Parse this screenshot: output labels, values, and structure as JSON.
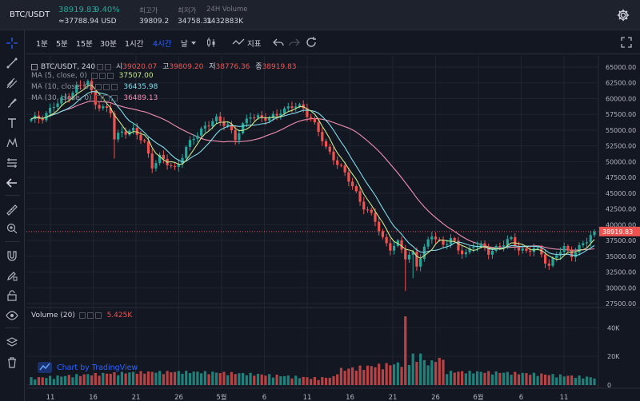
{
  "ticker": {
    "symbol": "BTC/USDT",
    "last_price": "38919.83",
    "change_pct": "9.40%",
    "usd_value": "≈37788.94 USD",
    "high_label": "최고가",
    "high_value": "39809.2",
    "low_label": "최저가",
    "low_value": "34758.31",
    "volume_label": "24H Volume",
    "volume_value": "1432883K"
  },
  "toolbar": {
    "intervals": [
      "1분",
      "5분",
      "15분",
      "30분",
      "1시간",
      "4시간",
      "날"
    ],
    "active_interval": "4시간",
    "indicators_label": "지표"
  },
  "chart_header": {
    "title": "BTC/USDT, 240",
    "open_label": "시",
    "open_value": "39020.07",
    "high_label": "고",
    "high_value": "39809.20",
    "low_label": "저",
    "low_value": "38776.36",
    "close_label": "종",
    "close_value": "38919.83",
    "ma": [
      {
        "label": "MA (5, close, 0)",
        "value": "37507.00",
        "color": "#c9e68c"
      },
      {
        "label": "MA (10, close, 0)",
        "value": "36435.98",
        "color": "#80deea"
      },
      {
        "label": "MA (30, close, 0)",
        "value": "36489.13",
        "color": "#f48fb1"
      }
    ],
    "volume_label": "Volume (20)",
    "volume_value": "5.425K"
  },
  "branding": {
    "text": "Chart by TradingView"
  },
  "colors": {
    "up": "#26a69a",
    "down": "#ef5350",
    "accent": "#2962ff",
    "bg": "#131722"
  },
  "chart_data": {
    "type": "candlestick",
    "title": "BTC/USDT, 240",
    "y_ticks": [
      "65000.00",
      "62500.00",
      "60000.00",
      "57500.00",
      "55000.00",
      "52500.00",
      "50000.00",
      "47500.00",
      "45000.00",
      "42500.00",
      "40000.00",
      "37500.00",
      "35000.00",
      "32500.00",
      "30000.00",
      "27500.00"
    ],
    "ylim": [
      27500,
      65000
    ],
    "last_price_label": "38919.83",
    "last_price": 38919.83,
    "x_ticks": [
      "11",
      "16",
      "21",
      "26",
      "5월",
      "6",
      "11",
      "16",
      "21",
      "26",
      "6월",
      "6",
      "11"
    ],
    "volume_ticks": [
      "40K",
      "20K",
      "0"
    ],
    "volume_ylim": [
      0,
      48000
    ],
    "price_path": [
      [
        0,
        56500
      ],
      [
        3,
        57200
      ],
      [
        6,
        58800
      ],
      [
        9,
        60100
      ],
      [
        12,
        61800
      ],
      [
        15,
        62500
      ],
      [
        17,
        59500
      ],
      [
        19,
        58500
      ],
      [
        21,
        57800
      ],
      [
        22,
        53500
      ],
      [
        24,
        55000
      ],
      [
        27,
        54800
      ],
      [
        30,
        53000
      ],
      [
        32,
        49500
      ],
      [
        34,
        50500
      ],
      [
        36,
        49700
      ],
      [
        38,
        49000
      ],
      [
        40,
        51000
      ],
      [
        43,
        53800
      ],
      [
        46,
        55800
      ],
      [
        49,
        56500
      ],
      [
        52,
        56000
      ],
      [
        54,
        53700
      ],
      [
        56,
        55500
      ],
      [
        58,
        57500
      ],
      [
        61,
        57000
      ],
      [
        63,
        56500
      ],
      [
        66,
        58200
      ],
      [
        69,
        58700
      ],
      [
        72,
        58500
      ],
      [
        74,
        57000
      ],
      [
        76,
        54700
      ],
      [
        78,
        52000
      ],
      [
        80,
        50800
      ],
      [
        82,
        49000
      ],
      [
        85,
        46000
      ],
      [
        88,
        43000
      ],
      [
        91,
        40500
      ],
      [
        93,
        37800
      ],
      [
        95,
        36500
      ],
      [
        97,
        36900
      ],
      [
        99,
        34800
      ],
      [
        101,
        35600
      ],
      [
        102,
        33800
      ],
      [
        104,
        36000
      ],
      [
        106,
        38400
      ],
      [
        109,
        37000
      ],
      [
        111,
        37600
      ],
      [
        113,
        36000
      ],
      [
        115,
        35600
      ],
      [
        117,
        36800
      ],
      [
        119,
        36400
      ],
      [
        121,
        35800
      ],
      [
        123,
        36400
      ],
      [
        125,
        36900
      ],
      [
        127,
        37600
      ],
      [
        129,
        36400
      ],
      [
        131,
        35700
      ],
      [
        133,
        36100
      ],
      [
        135,
        35500
      ],
      [
        137,
        33500
      ],
      [
        139,
        35200
      ],
      [
        141,
        36200
      ],
      [
        143,
        35500
      ],
      [
        145,
        36300
      ],
      [
        147,
        37400
      ],
      [
        149,
        38919
      ]
    ],
    "ma_series": [
      {
        "name": "MA (5, close, 0)",
        "color": "#c9e68c",
        "value": 37507.0
      },
      {
        "name": "MA (10, close, 0)",
        "color": "#80deea",
        "value": 36435.98
      },
      {
        "name": "MA (30, close, 0)",
        "color": "#f48fb1",
        "value": 36489.13
      }
    ],
    "grid": true
  }
}
